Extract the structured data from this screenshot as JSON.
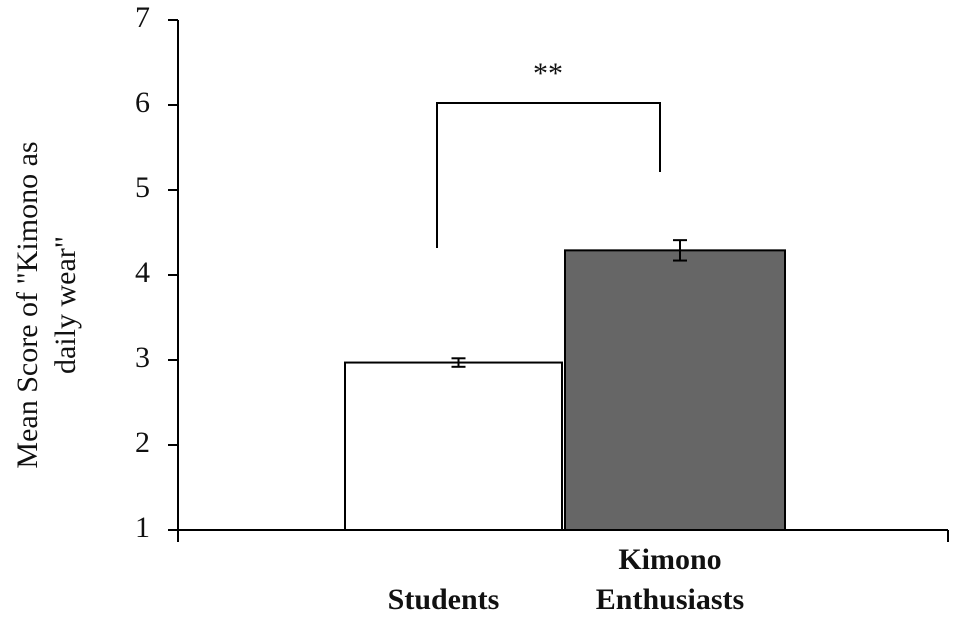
{
  "chart_data": {
    "type": "bar",
    "ylabel": [
      "Mean Score of \"Kimono as",
      "daily wear\""
    ],
    "categories": [
      "Students",
      "Kimono Enthusiasts"
    ],
    "values": [
      2.97,
      4.29
    ],
    "errors": [
      0.05,
      0.12
    ],
    "colors": [
      "#ffffff",
      "#666666"
    ],
    "ylim": [
      1,
      7
    ],
    "yticks": [
      1,
      2,
      3,
      4,
      5,
      6,
      7
    ],
    "annotation": "**"
  }
}
